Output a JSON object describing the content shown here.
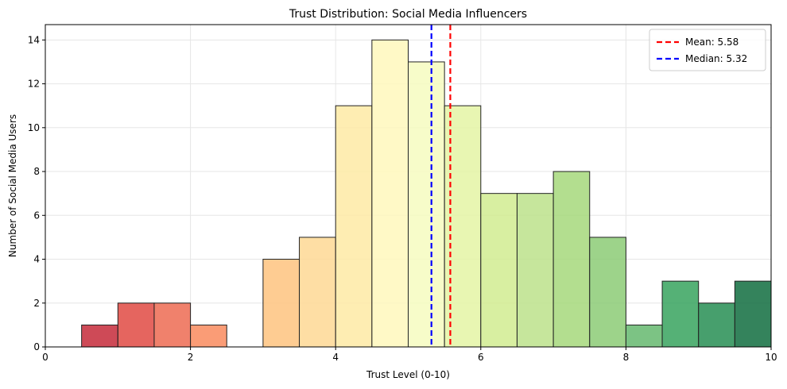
{
  "chart_data": {
    "type": "bar",
    "title": "Trust Distribution: Social Media Influencers",
    "xlabel": "Trust Level (0-10)",
    "ylabel": "Number of Social Media Users",
    "xlim": [
      0,
      10
    ],
    "ylim": [
      0,
      14.7
    ],
    "x_ticks": [
      0,
      2,
      4,
      6,
      8,
      10
    ],
    "y_ticks": [
      0,
      2,
      4,
      6,
      8,
      10,
      12,
      14
    ],
    "bin_width": 0.5,
    "bin_starts": [
      0.5,
      1.0,
      1.5,
      2.0,
      2.5,
      3.0,
      3.5,
      4.0,
      4.5,
      5.0,
      5.5,
      6.0,
      6.5,
      7.0,
      7.5,
      8.0,
      8.5,
      9.0,
      9.5
    ],
    "values": [
      1,
      2,
      2,
      1,
      0,
      4,
      5,
      11,
      14,
      13,
      11,
      7,
      7,
      8,
      5,
      1,
      3,
      2,
      3
    ],
    "bar_colors": [
      "#c52a3a",
      "#e14a43",
      "#ed6b52",
      "#f98b5e",
      "#fdae67",
      "#fec37f",
      "#fed894",
      "#feeaa4",
      "#fff8bc",
      "#f6fbc0",
      "#e4f4a4",
      "#d1ec91",
      "#bce28b",
      "#a6d87b",
      "#8ccb75",
      "#65b86e",
      "#37a35e",
      "#278e54",
      "#116d40"
    ],
    "grid": true,
    "reference_lines": [
      {
        "name": "Mean",
        "value": 5.58,
        "label": "Mean: 5.58",
        "color": "#ff0000"
      },
      {
        "name": "Median",
        "value": 5.32,
        "label": "Median: 5.32",
        "color": "#0000ff"
      }
    ],
    "legend_position": "top-right"
  }
}
